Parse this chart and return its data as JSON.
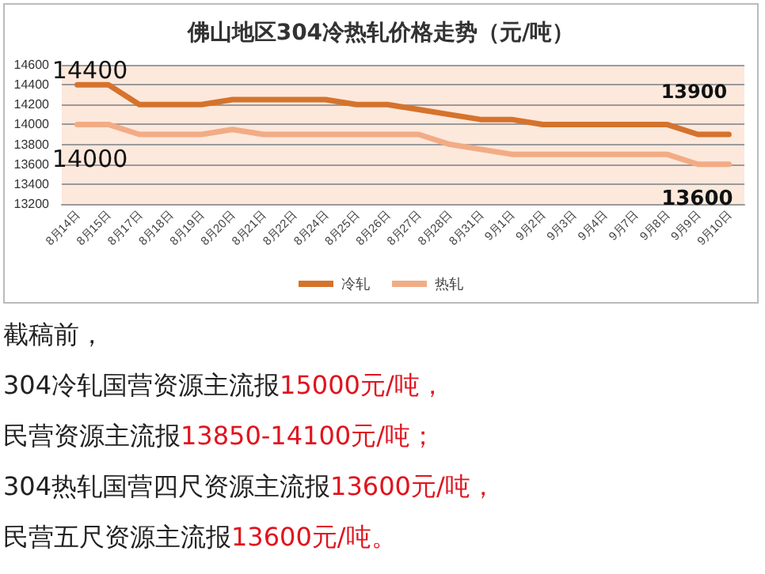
{
  "chart_data": {
    "type": "line",
    "title": "佛山地区304冷热轧价格走势（元/吨）",
    "categories": [
      "8月14日",
      "8月15日",
      "8月17日",
      "8月18日",
      "8月19日",
      "8月20日",
      "8月21日",
      "8月22日",
      "8月24日",
      "8月25日",
      "8月26日",
      "8月27日",
      "8月28日",
      "8月31日",
      "9月1日",
      "9月2日",
      "9月3日",
      "9月4日",
      "9月7日",
      "9月8日",
      "9月9日",
      "9月10日"
    ],
    "series": [
      {
        "name": "冷轧",
        "color": "#d5732c",
        "values": [
          14400,
          14400,
          14200,
          14200,
          14200,
          14250,
          14250,
          14250,
          14250,
          14200,
          14200,
          14150,
          14100,
          14050,
          14050,
          14000,
          14000,
          14000,
          14000,
          14000,
          13900,
          13900
        ]
      },
      {
        "name": "热轧",
        "color": "#f2ac85",
        "values": [
          14000,
          14000,
          13900,
          13900,
          13900,
          13950,
          13900,
          13900,
          13900,
          13900,
          13900,
          13900,
          13800,
          13750,
          13700,
          13700,
          13700,
          13700,
          13700,
          13700,
          13600,
          13600
        ]
      }
    ],
    "ylim": [
      13200,
      14600
    ],
    "yticks": [
      13200,
      13400,
      13600,
      13800,
      14000,
      14200,
      14400,
      14600
    ],
    "grid": "y",
    "legend": "bottom",
    "marker": "none",
    "annotations": [
      {
        "text": "14400",
        "x": "8月14日",
        "y": 14400
      },
      {
        "text": "14000",
        "x": "8月14日",
        "y": 14000
      },
      {
        "text": "13900",
        "x": "9月10日",
        "y": 13900
      },
      {
        "text": "13600",
        "x": "9月10日",
        "y": 13600
      },
      "截稿前，",
      "304冷轧国营资源主流报15000元/吨，",
      "民营资源主流报13850-14100元/吨；",
      "304热轧国营四尺资源主流报13600元/吨，",
      "民营五尺资源主流报13600元/吨。"
    ]
  }
}
